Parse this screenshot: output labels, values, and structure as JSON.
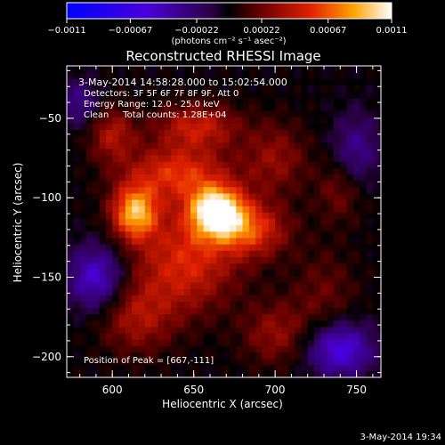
{
  "chart_data": {
    "type": "heatmap",
    "title": "Reconstructed RHESSI Image",
    "xlabel": "Heliocentric X (arcsec)",
    "ylabel": "Heliocentric Y (arcsec)",
    "xlim": [
      572,
      765
    ],
    "ylim": [
      -213,
      -17
    ],
    "x_ticks": [
      600,
      650,
      700,
      750
    ],
    "x_tick_labels": [
      "600",
      "650",
      "700",
      "750"
    ],
    "y_ticks": [
      -50,
      -100,
      -150,
      -200
    ],
    "y_tick_labels": [
      "−50",
      "−100",
      "−150",
      "−200"
    ],
    "colorbar": {
      "range": [
        -0.0011,
        0.0011
      ],
      "ticks": [
        -0.0011,
        -0.00067,
        -0.00022,
        0.00022,
        0.00067,
        0.0011
      ],
      "tick_labels": [
        "−0.0011",
        "−0.00067",
        "−0.00022",
        "0.00022",
        "0.00067",
        "0.0011"
      ],
      "units_label": "(photons cm⁻² s⁻¹ asec⁻²)"
    },
    "annotations": [
      "3-May-2014 14:58:28.000 to 15:02:54.000",
      "Detectors: 3F 5F 6F 7F 8F 9F, Att 0",
      "Energy Range: 12.0 - 25.0 keV",
      "Clean     Total counts: 1.28E+04"
    ],
    "peak_label": "Position of Peak = [667,-111]",
    "peak": [
      667,
      -111
    ],
    "sources": [
      {
        "x": 664,
        "y": -108,
        "sx": 12,
        "sy": 11,
        "amp": 1.0
      },
      {
        "x": 614,
        "y": -109,
        "sx": 10,
        "sy": 12,
        "amp": 0.78
      },
      {
        "x": 640,
        "y": -84,
        "sx": 22,
        "sy": 12,
        "amp": 0.5
      },
      {
        "x": 652,
        "y": -55,
        "sx": 18,
        "sy": 10,
        "amp": 0.42
      },
      {
        "x": 600,
        "y": -60,
        "sx": 10,
        "sy": 12,
        "amp": 0.35
      },
      {
        "x": 645,
        "y": -140,
        "sx": 22,
        "sy": 22,
        "amp": 0.48
      },
      {
        "x": 685,
        "y": -120,
        "sx": 16,
        "sy": 12,
        "amp": 0.5
      },
      {
        "x": 700,
        "y": -75,
        "sx": 14,
        "sy": 16,
        "amp": 0.28
      },
      {
        "x": 615,
        "y": -175,
        "sx": 16,
        "sy": 16,
        "amp": 0.32
      },
      {
        "x": 700,
        "y": -185,
        "sx": 14,
        "sy": 14,
        "amp": 0.28
      },
      {
        "x": 730,
        "y": -160,
        "sx": 14,
        "sy": 20,
        "amp": 0.18
      },
      {
        "x": 740,
        "y": -95,
        "sx": 10,
        "sy": 14,
        "amp": 0.22
      }
    ],
    "negative_regions": [
      {
        "x": 590,
        "y": -150,
        "sx": 12,
        "sy": 14,
        "amp": 0.5
      },
      {
        "x": 740,
        "y": -195,
        "sx": 14,
        "sy": 12,
        "amp": 0.55
      },
      {
        "x": 750,
        "y": -70,
        "sx": 10,
        "sy": 16,
        "amp": 0.3
      },
      {
        "x": 580,
        "y": -40,
        "sx": 8,
        "sy": 10,
        "amp": 0.3
      }
    ]
  },
  "footer_timestamp": "3-May-2014 19:34"
}
